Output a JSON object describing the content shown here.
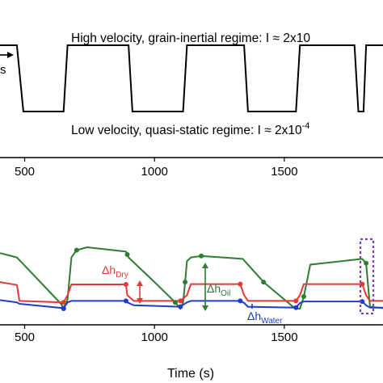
{
  "chart_data": [
    {
      "type": "line",
      "title": "",
      "xlabel": "",
      "ylabel": "",
      "xlim": [
        405,
        1880
      ],
      "x_ticks": [
        500,
        1000,
        1500
      ],
      "tick_labels": [
        "500",
        "1000",
        "1500"
      ],
      "colors": {
        "line": "#000000"
      },
      "series": [
        {
          "x": [
            405,
            470,
            495,
            650,
            665,
            900,
            915,
            1110,
            1125,
            1345,
            1360,
            1545,
            1560,
            1770,
            1785,
            1805,
            1815,
            1880
          ],
          "y": [
            1,
            1,
            0,
            0,
            1,
            1,
            0,
            0,
            1,
            1,
            0,
            0,
            1,
            1,
            0,
            0,
            1,
            1
          ]
        }
      ],
      "annotations": {
        "high": "High velocity, grain-inertial regime: I ≈ 2x10",
        "low_prefix": "Low velocity, quasi-static regime: I ≈ 2x10",
        "low_exp": "-4",
        "left_fragment": "s"
      }
    },
    {
      "type": "line",
      "title": "",
      "xlabel": "Time (s)",
      "ylabel": "",
      "xlim": [
        405,
        1880
      ],
      "x_ticks": [
        500,
        1000,
        1500
      ],
      "tick_labels": [
        "500",
        "1000",
        "1500"
      ],
      "series": [
        {
          "color": "#2e7d32",
          "x": [
            405,
            470,
            640,
            650,
            665,
            680,
            700,
            740,
            890,
            895,
            900,
            1000,
            1080,
            1100,
            1110,
            1118,
            1125,
            1140,
            1180,
            1340,
            1345,
            1420,
            1540,
            1560,
            1575,
            1600,
            1800,
            1815,
            1830,
            1880
          ],
          "y": [
            2.0,
            1.85,
            0.25,
            0.08,
            0.4,
            1.85,
            2.1,
            2.2,
            2.05,
            1.95,
            1.85,
            1.0,
            0.3,
            0.08,
            0.3,
            1.0,
            1.72,
            1.85,
            1.9,
            1.8,
            1.75,
            1.0,
            0.1,
            0.08,
            0.5,
            1.6,
            1.8,
            1.65,
            0.15,
            0.1
          ]
        },
        {
          "color": "#e53935",
          "x": [
            405,
            470,
            480,
            650,
            665,
            680,
            890,
            895,
            920,
            1100,
            1125,
            1140,
            1330,
            1345,
            1360,
            1545,
            1560,
            1575,
            1800,
            1815,
            1830,
            1880
          ],
          "y": [
            1.0,
            0.9,
            0.35,
            0.3,
            0.55,
            0.92,
            0.92,
            0.55,
            0.35,
            0.35,
            0.55,
            0.93,
            0.93,
            0.55,
            0.35,
            0.35,
            0.55,
            0.93,
            0.93,
            0.55,
            0.35,
            0.35
          ]
        },
        {
          "color": "#1e3cc8",
          "x": [
            405,
            470,
            480,
            650,
            665,
            680,
            890,
            895,
            920,
            1100,
            1125,
            1140,
            1330,
            1345,
            1360,
            1545,
            1560,
            1575,
            1800,
            1815,
            1830,
            1880
          ],
          "y": [
            0.38,
            0.3,
            0.25,
            0.1,
            0.3,
            0.35,
            0.35,
            0.3,
            0.2,
            0.15,
            0.3,
            0.35,
            0.35,
            0.28,
            0.15,
            0.12,
            0.28,
            0.33,
            0.33,
            0.2,
            0.12,
            0.12
          ]
        }
      ],
      "annotations": {
        "dh_dry": "Δh",
        "dh_dry_sub": "Dry",
        "dh_oil": "Δh",
        "dh_oil_sub": "Oil",
        "dh_water": "Δh",
        "dh_water_sub": "Water"
      }
    }
  ]
}
